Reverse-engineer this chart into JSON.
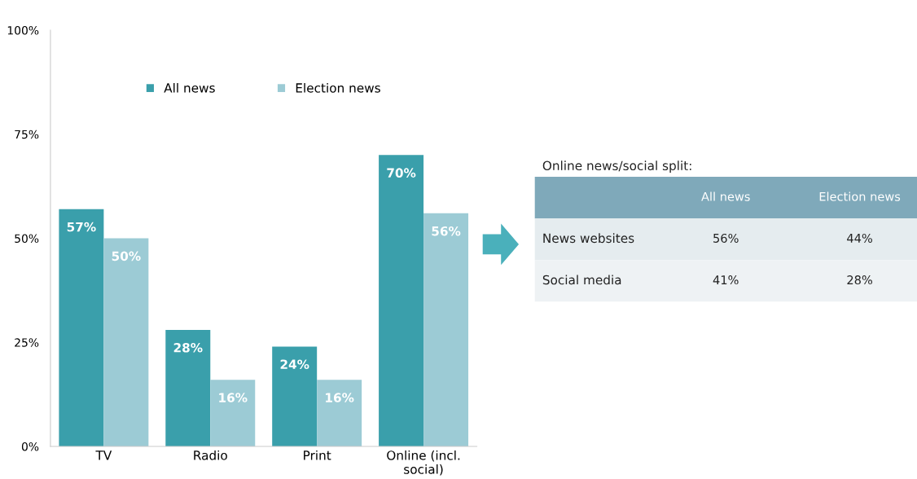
{
  "chart_data": [
    {
      "type": "bar",
      "categories": [
        "TV",
        "Radio",
        "Print",
        "Online (incl.\nsocial)"
      ],
      "series": [
        {
          "name": "All news",
          "color": "#3a9fab",
          "values": [
            57,
            28,
            24,
            70
          ]
        },
        {
          "name": "Election news",
          "color": "#9ccbd5",
          "values": [
            50,
            16,
            16,
            56
          ]
        }
      ],
      "ylim": [
        0,
        100
      ],
      "yticks": [
        {
          "value": 0,
          "label": "0%"
        },
        {
          "value": 25,
          "label": "25%"
        },
        {
          "value": 50,
          "label": "50%"
        },
        {
          "value": 75,
          "label": "75%"
        },
        {
          "value": 100,
          "label": "100%"
        }
      ],
      "value_labels": [
        [
          "57%",
          "28%",
          "24%",
          "70%"
        ],
        [
          "50%",
          "16%",
          "16%",
          "56%"
        ]
      ],
      "legend": "top",
      "grid": false
    },
    {
      "type": "other",
      "title": "Online news/social split:",
      "categories": [
        "All news",
        "Election news"
      ],
      "y_categories": [
        "News websites",
        "Social media"
      ],
      "cell_labels": [
        [
          "56%",
          "44%"
        ],
        [
          "41%",
          "28%"
        ]
      ]
    }
  ]
}
